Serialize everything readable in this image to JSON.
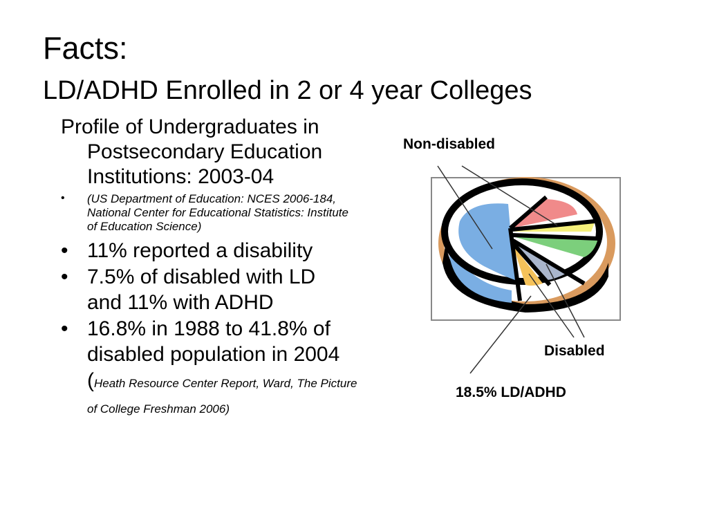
{
  "slide": {
    "title": "Facts:",
    "subtitle": "LD/ADHD Enrolled in 2 or 4 year Colleges",
    "profile": "Profile of Undergraduates in Postsecondary Education Institutions:  2003-04",
    "bullets": [
      {
        "text": "(US Department of Education:  NCES 2006-184, National Center for Educational Statistics: Institute of Education Science)"
      },
      {
        "text": "11% reported a disability"
      },
      {
        "text": "7.5% of disabled with LD and 11% with ADHD"
      },
      {
        "text": "16.8% in 1988 to 41.8% of disabled population in 2004 (",
        "citation": "Heath Resource Center Report, Ward, The Picture of College Freshman 2006)"
      }
    ],
    "bullet_char": "•"
  },
  "figure": {
    "label_nondisabled": "Non-disabled",
    "label_disabled": "Disabled",
    "label_ldadhd": "18.5%  LD/ADHD",
    "colors": {
      "blue": "#7aaee3",
      "red": "#f08a8a",
      "yellow": "#f5f07a",
      "green": "#7ccf7c",
      "gray": "#aab6cc",
      "orange": "#f5c25a",
      "rim": "#d99a5e"
    }
  }
}
